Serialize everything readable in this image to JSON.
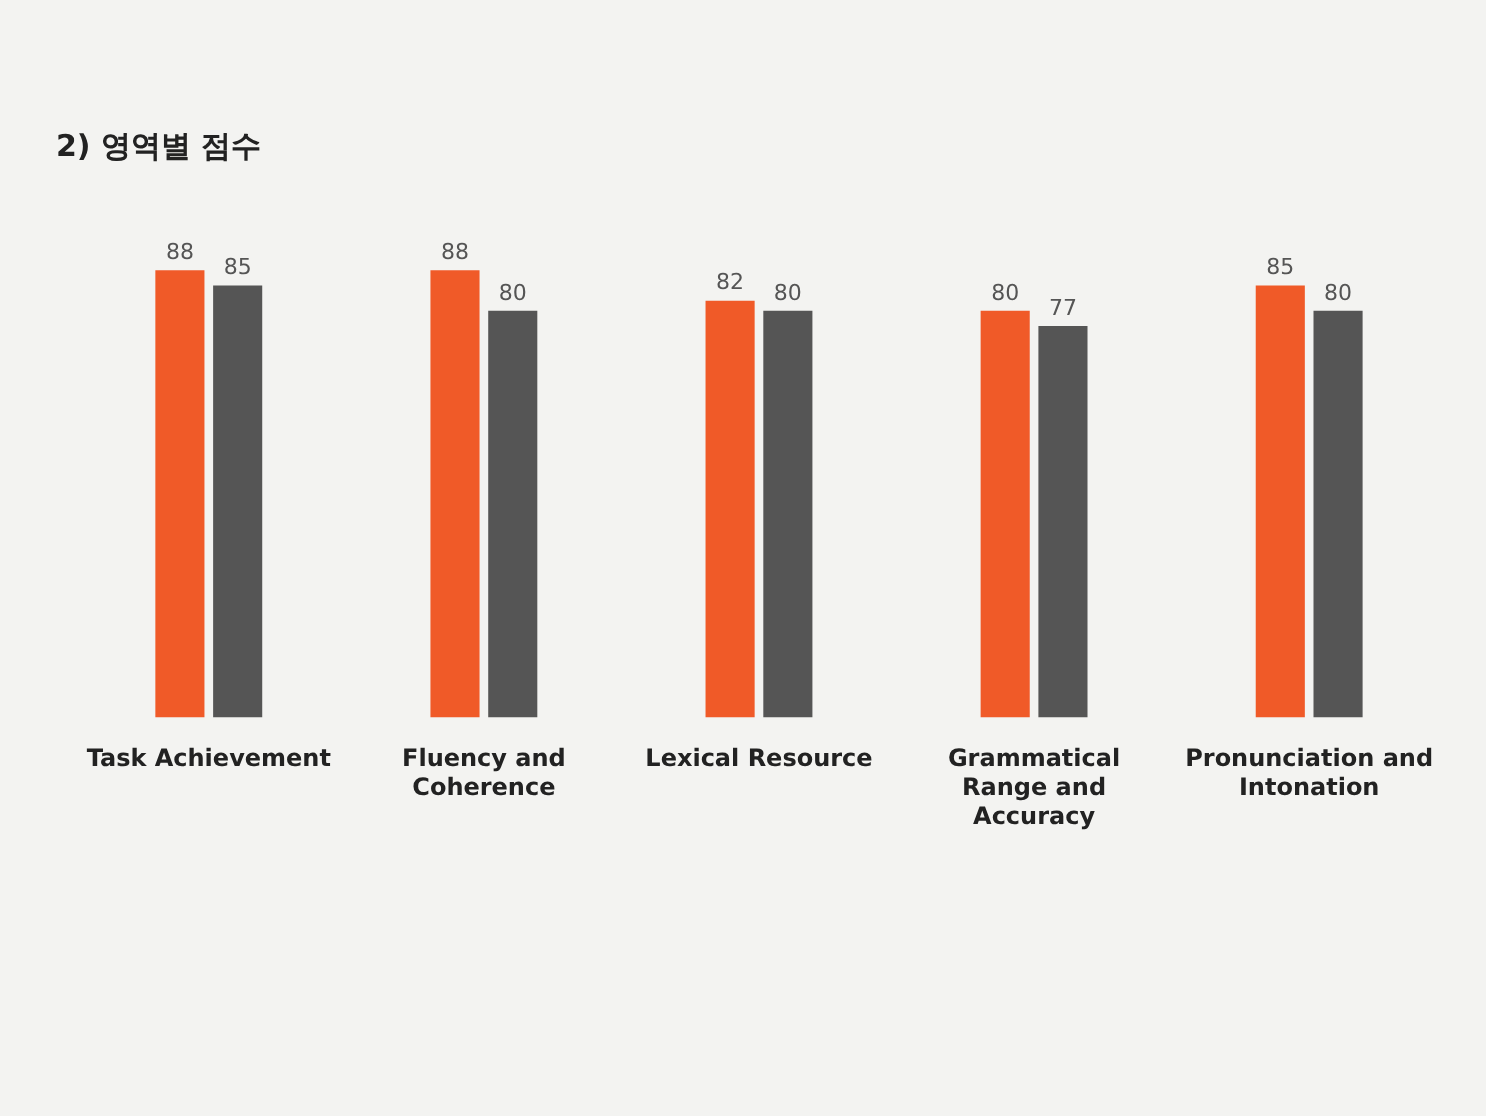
{
  "chart_data": {
    "type": "bar",
    "title": "2) 영역별 점수",
    "categories": [
      "Task Achievement",
      "Fluency and Coherence",
      "Lexical Resource",
      "Grammatical Range and Accuracy",
      "Pronunciation and Intonation"
    ],
    "series": [
      {
        "color": "#f05a28",
        "values": [
          88,
          88,
          82,
          80,
          85
        ]
      },
      {
        "color": "#555555",
        "values": [
          85,
          80,
          80,
          77,
          80
        ]
      }
    ],
    "data_labels": true,
    "grid": false,
    "legend": false
  }
}
